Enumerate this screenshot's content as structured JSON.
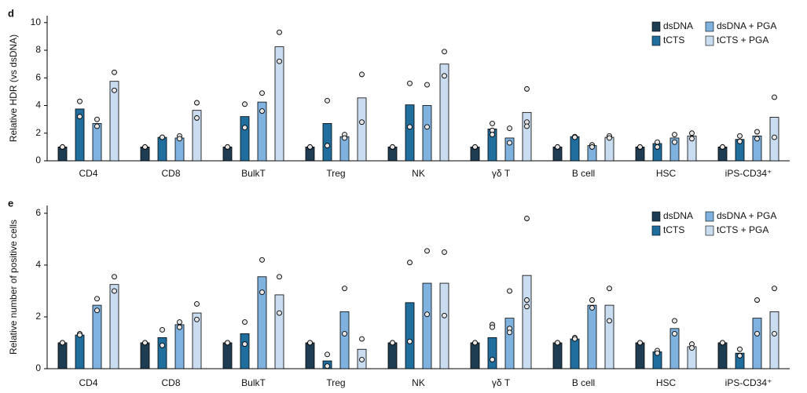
{
  "chart_data": [
    {
      "type": "bar",
      "panel_label": "d",
      "ylabel": "Relative HDR (vs dsDNA)",
      "categories": [
        "CD4",
        "CD8",
        "BulkT",
        "Treg",
        "NK",
        "γδ T",
        "B cell",
        "HSC",
        "iPS-CD34⁺"
      ],
      "ylim": [
        0,
        10.5
      ],
      "yticks": [
        0,
        2,
        4,
        6,
        8,
        10
      ],
      "series": [
        {
          "name": "dsDNA",
          "color": "#1f3d52",
          "values": [
            1,
            1,
            1,
            1,
            1,
            1,
            1,
            1,
            1
          ],
          "replicates": [
            [
              1,
              1
            ],
            [
              1,
              1
            ],
            [
              1,
              1
            ],
            [
              1,
              1
            ],
            [
              1,
              1
            ],
            [
              1,
              1
            ],
            [
              1,
              1
            ],
            [
              1,
              1
            ],
            [
              1,
              1
            ]
          ]
        },
        {
          "name": "tCTS",
          "color": "#1f6e9e",
          "values": [
            3.75,
            1.7,
            3.2,
            2.7,
            4.05,
            2.3,
            1.75,
            1.25,
            1.55
          ],
          "replicates": [
            [
              4.3,
              3.2
            ],
            [
              1.7,
              1.7
            ],
            [
              4.1,
              2.4
            ],
            [
              4.35,
              1.1
            ],
            [
              5.6,
              2.45
            ],
            [
              2.7,
              2.2,
              1.9
            ],
            [
              1.75,
              1.7
            ],
            [
              1.35,
              1.0
            ],
            [
              1.8,
              1.4
            ]
          ]
        },
        {
          "name": "dsDNA + PGA",
          "color": "#7fb2df",
          "values": [
            2.7,
            1.65,
            4.25,
            1.75,
            4.0,
            1.65,
            1.1,
            1.65,
            1.8
          ],
          "replicates": [
            [
              3.0,
              2.5
            ],
            [
              1.8,
              1.6
            ],
            [
              4.9,
              3.6
            ],
            [
              1.9,
              1.65
            ],
            [
              5.5,
              2.45
            ],
            [
              2.35,
              1.3
            ],
            [
              1.15,
              1.0
            ],
            [
              1.9,
              1.35
            ],
            [
              2.1,
              1.6
            ]
          ]
        },
        {
          "name": "tCTS + PGA",
          "color": "#c9dcf0",
          "values": [
            5.75,
            3.65,
            8.25,
            4.55,
            7.0,
            3.5,
            1.7,
            1.8,
            3.15
          ],
          "replicates": [
            [
              6.4,
              5.1
            ],
            [
              4.2,
              3.1
            ],
            [
              9.3,
              7.2
            ],
            [
              6.25,
              2.8
            ],
            [
              7.9,
              6.15
            ],
            [
              5.2,
              2.8,
              2.5
            ],
            [
              1.8,
              1.65
            ],
            [
              2.0,
              1.6
            ],
            [
              4.6,
              1.7
            ]
          ]
        }
      ]
    },
    {
      "type": "bar",
      "panel_label": "e",
      "ylabel": "Relative number of positive cells",
      "categories": [
        "CD4",
        "CD8",
        "BulkT",
        "Treg",
        "NK",
        "γδ T",
        "B cell",
        "HSC",
        "iPS-CD34⁺"
      ],
      "ylim": [
        0,
        6.3
      ],
      "yticks": [
        0,
        2,
        4,
        6
      ],
      "series": [
        {
          "name": "dsDNA",
          "color": "#1f3d52",
          "values": [
            1,
            1,
            1,
            1,
            1,
            1,
            1,
            1,
            1
          ],
          "replicates": [
            [
              1,
              1
            ],
            [
              1,
              1
            ],
            [
              1,
              1
            ],
            [
              1,
              1
            ],
            [
              1,
              1
            ],
            [
              1,
              1
            ],
            [
              1,
              1
            ],
            [
              1,
              1
            ],
            [
              1,
              1
            ]
          ]
        },
        {
          "name": "tCTS",
          "color": "#1f6e9e",
          "values": [
            1.3,
            1.2,
            1.35,
            0.3,
            2.55,
            1.2,
            1.15,
            0.65,
            0.6
          ],
          "replicates": [
            [
              1.35,
              1.3
            ],
            [
              1.5,
              0.9
            ],
            [
              1.8,
              0.95
            ],
            [
              0.55,
              0.1
            ],
            [
              4.1,
              1.05
            ],
            [
              1.7,
              1.6,
              0.35
            ],
            [
              1.2,
              1.15
            ],
            [
              0.7,
              0.6
            ],
            [
              0.75,
              0.5
            ]
          ]
        },
        {
          "name": "dsDNA + PGA",
          "color": "#7fb2df",
          "values": [
            2.45,
            1.7,
            3.55,
            2.2,
            3.3,
            1.95,
            2.45,
            1.55,
            1.95
          ],
          "replicates": [
            [
              2.7,
              2.25
            ],
            [
              1.8,
              1.6
            ],
            [
              4.2,
              2.95
            ],
            [
              3.1,
              1.35
            ],
            [
              4.55,
              2.1
            ],
            [
              3.0,
              1.55,
              1.4
            ],
            [
              2.65,
              2.35
            ],
            [
              1.85,
              1.35
            ],
            [
              2.65,
              1.35
            ]
          ]
        },
        {
          "name": "tCTS + PGA",
          "color": "#c9dcf0",
          "values": [
            3.25,
            2.15,
            2.85,
            0.75,
            3.3,
            3.6,
            2.45,
            0.85,
            2.2
          ],
          "replicates": [
            [
              3.55,
              3.0
            ],
            [
              2.5,
              1.9
            ],
            [
              3.55,
              2.15
            ],
            [
              1.15,
              0.35
            ],
            [
              4.5,
              2.05
            ],
            [
              5.8,
              2.65,
              2.4
            ],
            [
              3.1,
              1.85
            ],
            [
              0.95,
              0.8
            ],
            [
              3.1,
              1.35
            ]
          ]
        }
      ]
    }
  ]
}
